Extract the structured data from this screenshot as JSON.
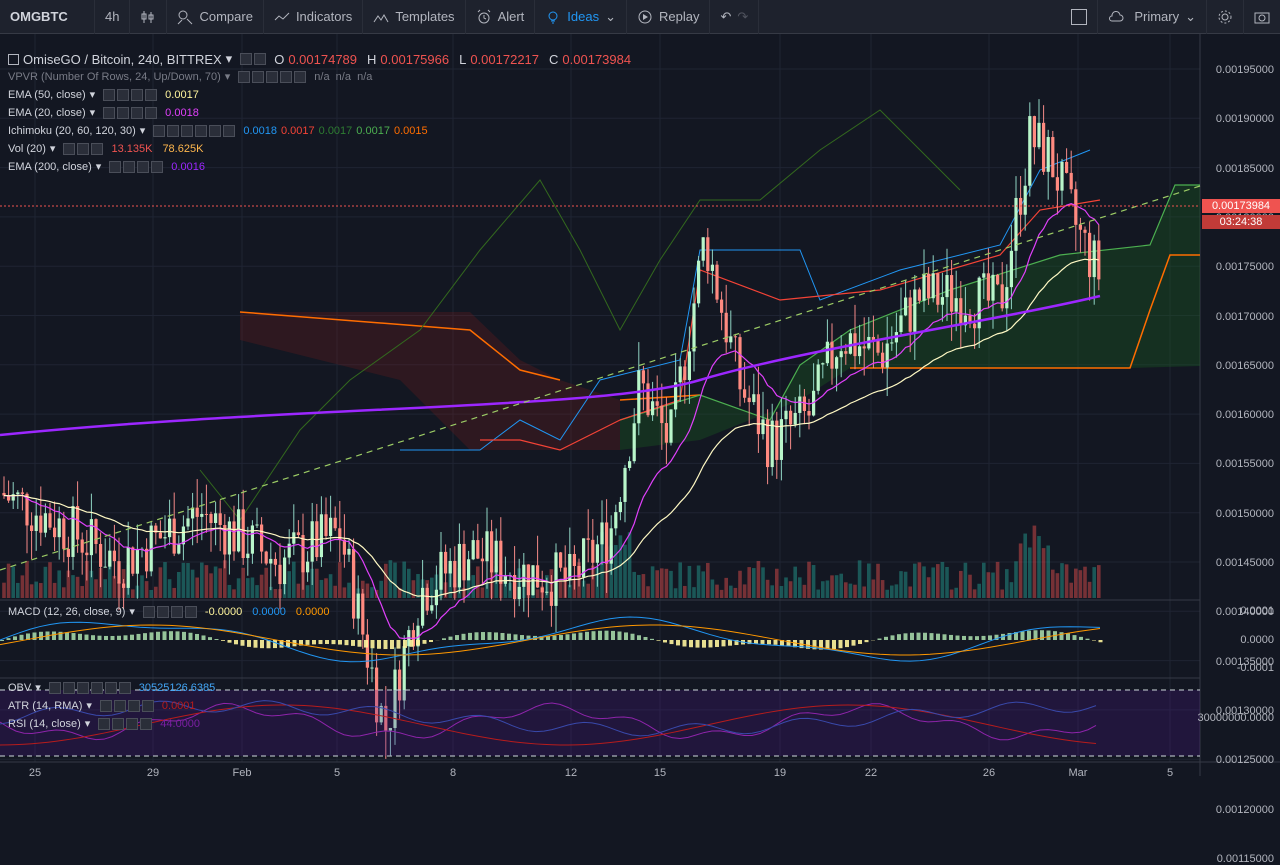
{
  "toolbar": {
    "symbol": "OMGBTC",
    "interval": "4h",
    "compare": "Compare",
    "indicators": "Indicators",
    "templates": "Templates",
    "alert": "Alert",
    "ideas": "Ideas",
    "replay": "Replay",
    "layout": "Primary"
  },
  "legend": {
    "title": "OmiseGO / Bitcoin, 240, BITTREX",
    "o_label": "O",
    "o": "0.00174789",
    "h_label": "H",
    "h": "0.00175966",
    "l_label": "L",
    "l": "0.00172217",
    "c_label": "C",
    "c": "0.00173984",
    "vpvr": "VPVR (Number Of Rows, 24, Up/Down, 70)",
    "vpvr_vals": "n/a  n/a  n/a",
    "ema50": "EMA (50, close)",
    "ema50_val": "0.0017",
    "ema20": "EMA (20, close)",
    "ema20_val": "0.0018",
    "ichimoku": "Ichimoku (20, 60, 120, 30)",
    "ichi_v1": "0.0018",
    "ichi_v2": "0.0017",
    "ichi_v3": "0.0017",
    "ichi_v4": "0.0017",
    "ichi_v5": "0.0015",
    "vol": "Vol (20)",
    "vol_v1": "13.135K",
    "vol_v2": "78.625K",
    "ema200": "EMA (200, close)",
    "ema200_val": "0.0016",
    "macd": "MACD (12, 26, close, 9)",
    "macd_v1": "-0.0000",
    "macd_v2": "0.0000",
    "macd_v3": "0.0000",
    "obv": "OBV",
    "obv_val": "30525126.6385",
    "atr": "ATR (14, RMA)",
    "atr_val": "0.0001",
    "rsi": "RSI (14, close)",
    "rsi_val": "44.0000"
  },
  "price_axis": [
    "0.00195000",
    "0.00190000",
    "0.00185000",
    "0.00180000",
    "0.00175000",
    "0.00170000",
    "0.00165000",
    "0.00160000",
    "0.00155000",
    "0.00150000",
    "0.00145000",
    "0.00140000",
    "0.00135000",
    "0.00130000",
    "0.00125000",
    "0.00120000",
    "0.00115000"
  ],
  "current_price": "0.00173984",
  "countdown": "03:24:38",
  "macd_axis": [
    "0.0001",
    "0.0000",
    "-0.0001"
  ],
  "obv_axis": "30000000.0000",
  "time_axis": [
    "25",
    "29",
    "Feb",
    "5",
    "8",
    "12",
    "15",
    "19",
    "22",
    "26",
    "Mar",
    "5"
  ],
  "colors": {
    "up": "#26a69a",
    "down": "#ef5350",
    "ema50": "#fff9c4",
    "ema20": "#e040fb",
    "ema200": "#9c27ff",
    "tenkan": "#2196f3",
    "kijun": "#f44336",
    "lead": "#4caf50",
    "lag": "#ff6d00"
  }
}
